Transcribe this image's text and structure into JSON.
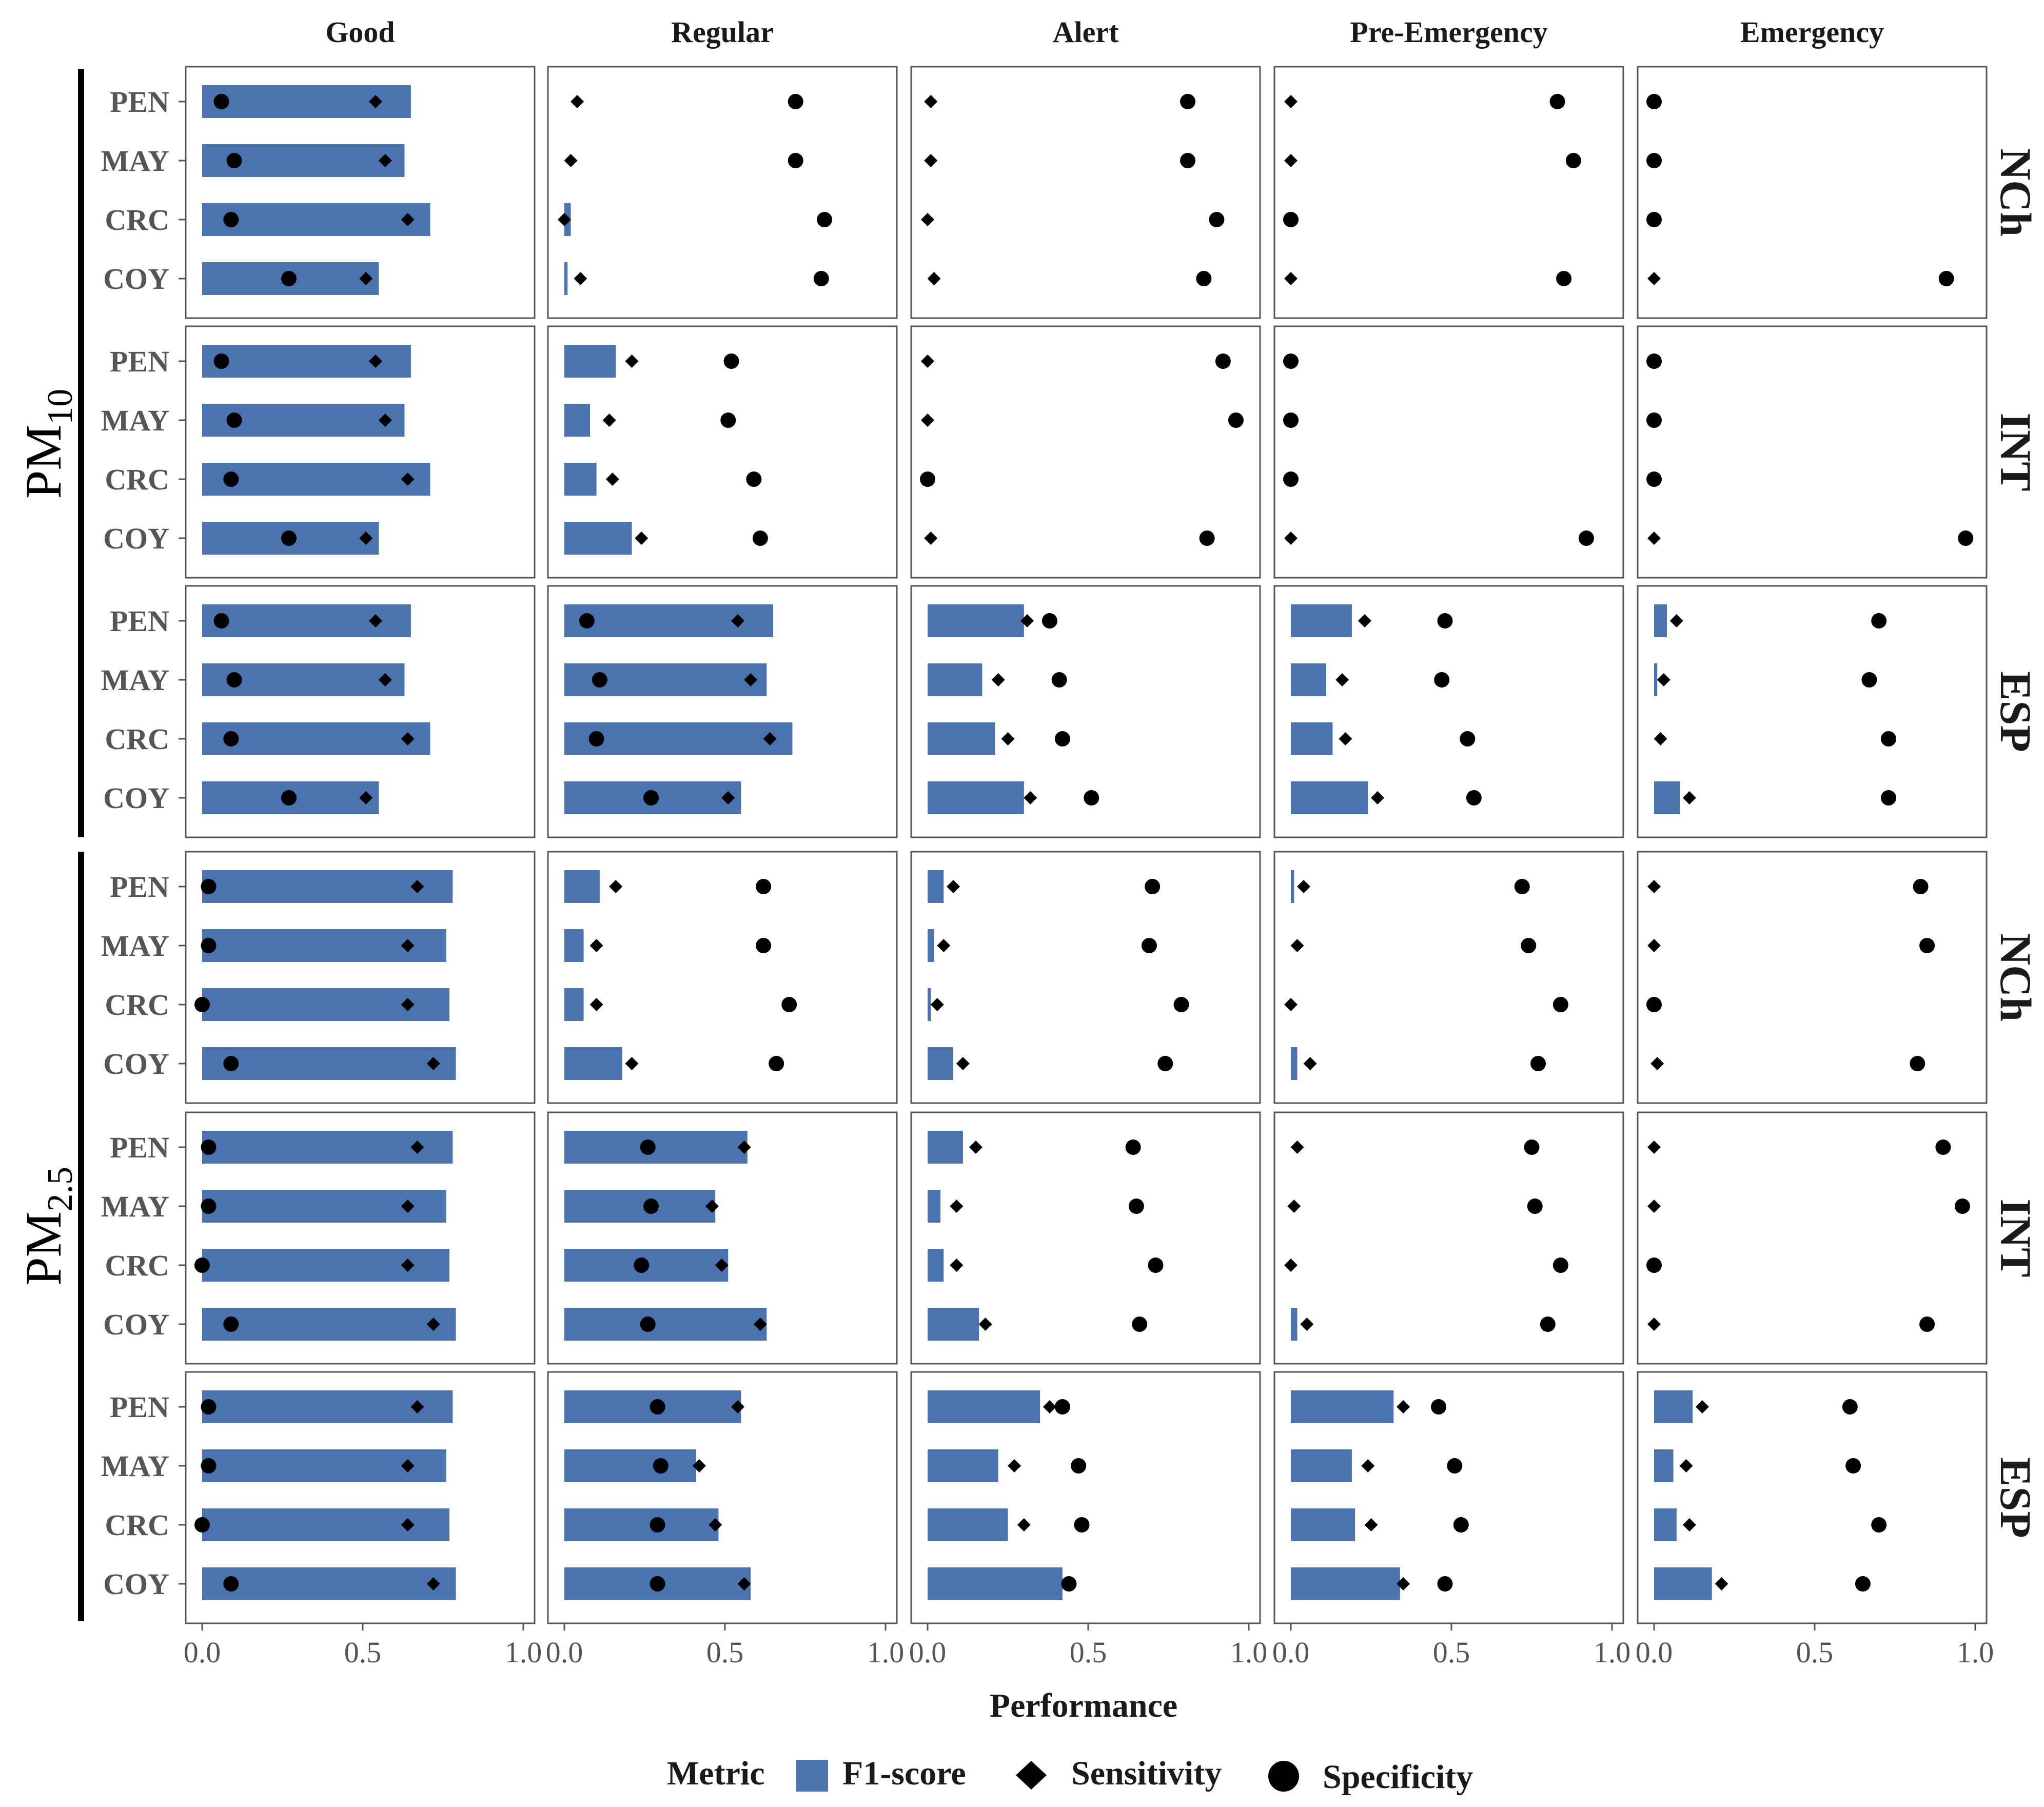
{
  "chart_data": {
    "type": "bar",
    "columns": [
      "Good",
      "Regular",
      "Alert",
      "Pre-Emergency",
      "Emergency"
    ],
    "row_labels": [
      "NCh",
      "INT",
      "ESP",
      "NCh",
      "INT",
      "ESP"
    ],
    "pollutant_groups": [
      {
        "name": "PM",
        "subscript": "10"
      },
      {
        "name": "PM",
        "subscript": "2.5"
      }
    ],
    "stations": [
      "PEN",
      "MAY",
      "CRC",
      "COY"
    ],
    "xlim": [
      0,
      1
    ],
    "x_ticks": [
      "0.0",
      "0.5",
      "1.0"
    ],
    "xlabel": "Performance",
    "legend": {
      "title": "Metric",
      "position": "bottom",
      "items": [
        {
          "label": "F1-score",
          "shape": "bar"
        },
        {
          "label": "Sensitivity",
          "shape": "diamond"
        },
        {
          "label": "Specificity",
          "shape": "circle"
        }
      ]
    },
    "colors": {
      "bar": "#4a73b0",
      "marker": "#000000",
      "panel_border": "#555555"
    },
    "panels": [
      [
        {
          "f1": [
            0.65,
            0.63,
            0.71,
            0.55
          ],
          "sens": [
            0.54,
            0.57,
            0.64,
            0.51
          ],
          "spec": [
            0.06,
            0.1,
            0.09,
            0.27
          ]
        },
        {
          "f1": [
            0.0,
            0.0,
            0.02,
            0.01
          ],
          "sens": [
            0.04,
            0.02,
            0.0,
            0.05
          ],
          "spec": [
            0.72,
            0.72,
            0.81,
            0.8
          ]
        },
        {
          "f1": [
            0.0,
            0.0,
            0.0,
            0.0
          ],
          "sens": [
            0.01,
            0.01,
            0.0,
            0.02
          ],
          "spec": [
            0.81,
            0.81,
            0.9,
            0.86
          ]
        },
        {
          "f1": [
            0.0,
            0.0,
            0.0,
            0.0
          ],
          "sens": [
            0.0,
            0.0,
            0.0,
            0.0
          ],
          "spec": [
            0.83,
            0.88,
            0.0,
            0.85
          ]
        },
        {
          "f1": [
            0.0,
            0.0,
            0.0,
            0.0
          ],
          "sens": [
            0.0,
            0.0,
            0.0,
            0.0
          ],
          "spec": [
            0.0,
            0.0,
            0.0,
            0.91
          ]
        }
      ],
      [
        {
          "f1": [
            0.65,
            0.63,
            0.71,
            0.55
          ],
          "sens": [
            0.54,
            0.57,
            0.64,
            0.51
          ],
          "spec": [
            0.06,
            0.1,
            0.09,
            0.27
          ]
        },
        {
          "f1": [
            0.16,
            0.08,
            0.1,
            0.21
          ],
          "sens": [
            0.21,
            0.14,
            0.15,
            0.24
          ],
          "spec": [
            0.52,
            0.51,
            0.59,
            0.61
          ]
        },
        {
          "f1": [
            0.0,
            0.0,
            0.0,
            0.0
          ],
          "sens": [
            0.0,
            0.0,
            0.0,
            0.01
          ],
          "spec": [
            0.92,
            0.96,
            0.0,
            0.87
          ]
        },
        {
          "f1": [
            0.0,
            0.0,
            0.0,
            0.0
          ],
          "sens": [
            0.0,
            0.0,
            0.0,
            0.0
          ],
          "spec": [
            0.0,
            0.0,
            0.0,
            0.92
          ]
        },
        {
          "f1": [
            0.0,
            0.0,
            0.0,
            0.0
          ],
          "sens": [
            0.0,
            0.0,
            0.0,
            0.0
          ],
          "spec": [
            0.0,
            0.0,
            0.0,
            0.97
          ]
        }
      ],
      [
        {
          "f1": [
            0.65,
            0.63,
            0.71,
            0.55
          ],
          "sens": [
            0.54,
            0.57,
            0.64,
            0.51
          ],
          "spec": [
            0.06,
            0.1,
            0.09,
            0.27
          ]
        },
        {
          "f1": [
            0.65,
            0.63,
            0.71,
            0.55
          ],
          "sens": [
            0.54,
            0.58,
            0.64,
            0.51
          ],
          "spec": [
            0.07,
            0.11,
            0.1,
            0.27
          ]
        },
        {
          "f1": [
            0.3,
            0.17,
            0.21,
            0.3
          ],
          "sens": [
            0.31,
            0.22,
            0.25,
            0.32
          ],
          "spec": [
            0.38,
            0.41,
            0.42,
            0.51
          ]
        },
        {
          "f1": [
            0.19,
            0.11,
            0.13,
            0.24
          ],
          "sens": [
            0.23,
            0.16,
            0.17,
            0.27
          ],
          "spec": [
            0.48,
            0.47,
            0.55,
            0.57
          ]
        },
        {
          "f1": [
            0.04,
            0.01,
            0.0,
            0.08
          ],
          "sens": [
            0.07,
            0.03,
            0.02,
            0.11
          ],
          "spec": [
            0.7,
            0.67,
            0.73,
            0.73
          ]
        }
      ],
      [
        {
          "f1": [
            0.78,
            0.76,
            0.77,
            0.79
          ],
          "sens": [
            0.67,
            0.64,
            0.64,
            0.72
          ],
          "spec": [
            0.02,
            0.02,
            0.0,
            0.09
          ]
        },
        {
          "f1": [
            0.11,
            0.06,
            0.06,
            0.18
          ],
          "sens": [
            0.16,
            0.1,
            0.1,
            0.21
          ],
          "spec": [
            0.62,
            0.62,
            0.7,
            0.66
          ]
        },
        {
          "f1": [
            0.05,
            0.02,
            0.01,
            0.08
          ],
          "sens": [
            0.08,
            0.05,
            0.03,
            0.11
          ],
          "spec": [
            0.7,
            0.69,
            0.79,
            0.74
          ]
        },
        {
          "f1": [
            0.01,
            0.0,
            0.0,
            0.02
          ],
          "sens": [
            0.04,
            0.02,
            0.0,
            0.06
          ],
          "spec": [
            0.72,
            0.74,
            0.84,
            0.77
          ]
        },
        {
          "f1": [
            0.0,
            0.0,
            0.0,
            0.0
          ],
          "sens": [
            0.0,
            0.0,
            0.0,
            0.01
          ],
          "spec": [
            0.83,
            0.85,
            0.0,
            0.82
          ]
        }
      ],
      [
        {
          "f1": [
            0.78,
            0.76,
            0.77,
            0.79
          ],
          "sens": [
            0.67,
            0.64,
            0.64,
            0.72
          ],
          "spec": [
            0.02,
            0.02,
            0.0,
            0.09
          ]
        },
        {
          "f1": [
            0.57,
            0.47,
            0.51,
            0.63
          ],
          "sens": [
            0.56,
            0.46,
            0.49,
            0.61
          ],
          "spec": [
            0.26,
            0.27,
            0.24,
            0.26
          ]
        },
        {
          "f1": [
            0.11,
            0.04,
            0.05,
            0.16
          ],
          "sens": [
            0.15,
            0.09,
            0.09,
            0.18
          ],
          "spec": [
            0.64,
            0.65,
            0.71,
            0.66
          ]
        },
        {
          "f1": [
            0.0,
            0.0,
            0.0,
            0.02
          ],
          "sens": [
            0.02,
            0.01,
            0.0,
            0.05
          ],
          "spec": [
            0.75,
            0.76,
            0.84,
            0.8
          ]
        },
        {
          "f1": [
            0.0,
            0.0,
            0.0,
            0.0
          ],
          "sens": [
            0.0,
            0.0,
            0.0,
            0.0
          ],
          "spec": [
            0.9,
            0.96,
            0.0,
            0.85
          ]
        }
      ],
      [
        {
          "f1": [
            0.78,
            0.76,
            0.77,
            0.79
          ],
          "sens": [
            0.67,
            0.64,
            0.64,
            0.72
          ],
          "spec": [
            0.02,
            0.02,
            0.0,
            0.09
          ]
        },
        {
          "f1": [
            0.55,
            0.41,
            0.48,
            0.58
          ],
          "sens": [
            0.54,
            0.42,
            0.47,
            0.56
          ],
          "spec": [
            0.29,
            0.3,
            0.29,
            0.29
          ]
        },
        {
          "f1": [
            0.35,
            0.22,
            0.25,
            0.42
          ],
          "sens": [
            0.38,
            0.27,
            0.3,
            0.44
          ],
          "spec": [
            0.42,
            0.47,
            0.48,
            0.44
          ]
        },
        {
          "f1": [
            0.32,
            0.19,
            0.2,
            0.34
          ],
          "sens": [
            0.35,
            0.24,
            0.25,
            0.35
          ],
          "spec": [
            0.46,
            0.51,
            0.53,
            0.48
          ]
        },
        {
          "f1": [
            0.12,
            0.06,
            0.07,
            0.18
          ],
          "sens": [
            0.15,
            0.1,
            0.11,
            0.21
          ],
          "spec": [
            0.61,
            0.62,
            0.7,
            0.65
          ]
        }
      ]
    ]
  }
}
